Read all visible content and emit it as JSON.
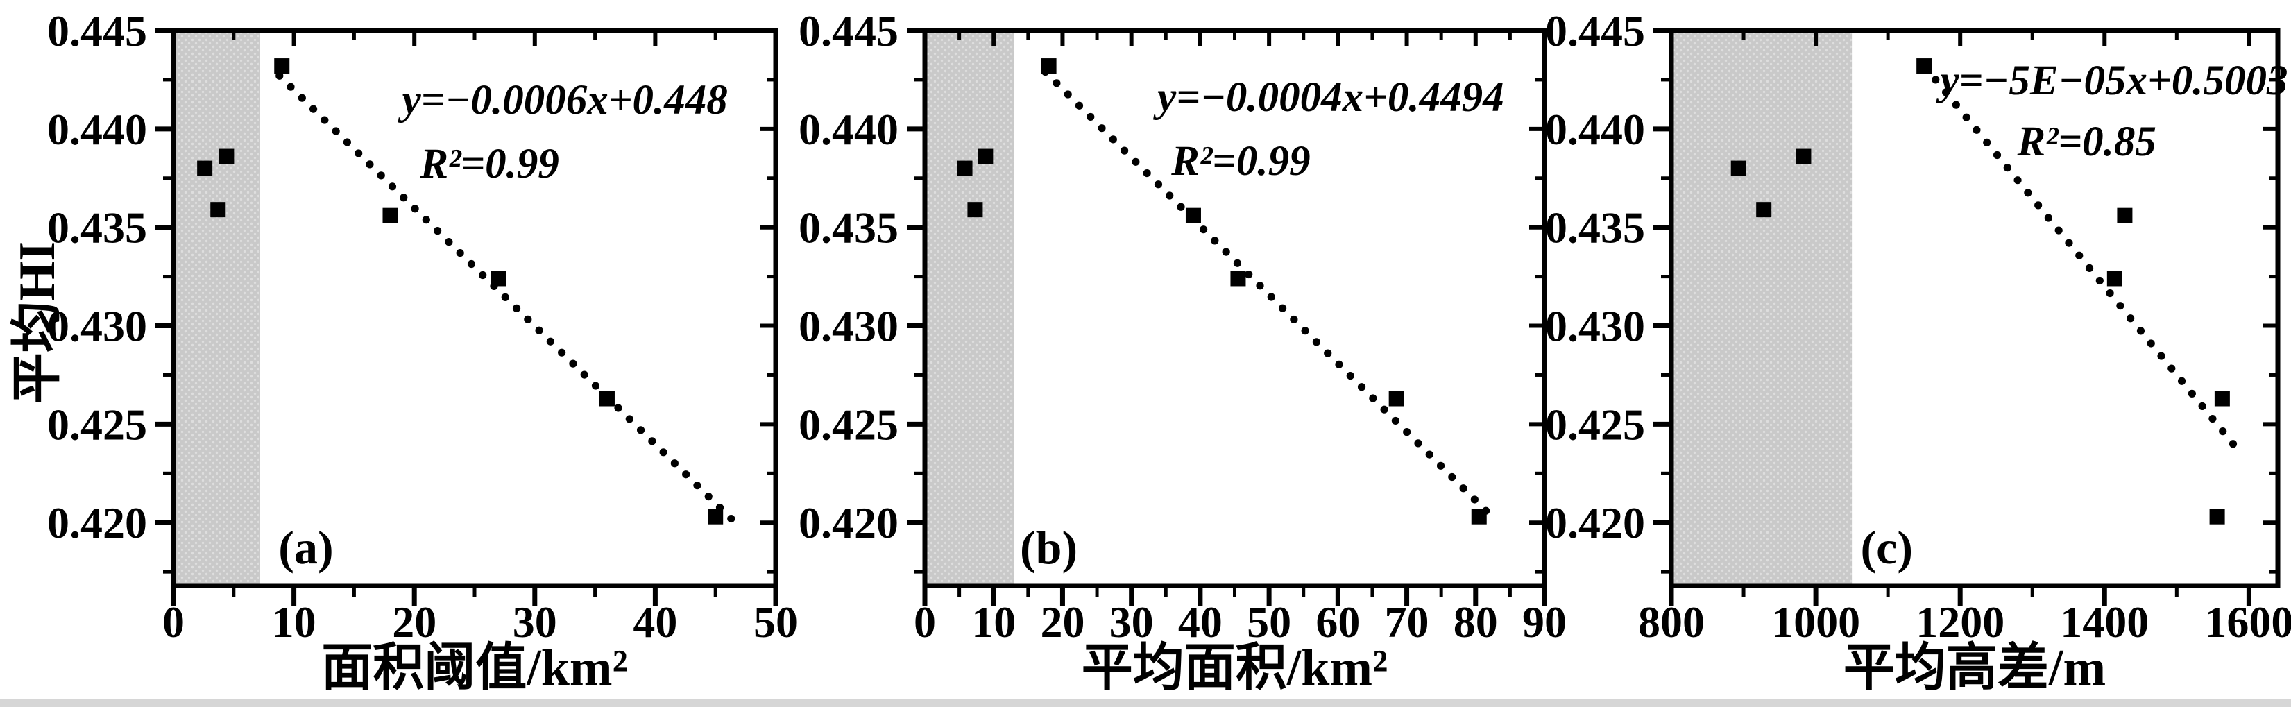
{
  "figure": {
    "background_color": "#ffffff",
    "ink_color": "#000000",
    "shade_color": "#c9c9c9",
    "shade_dot_color": "#dedede",
    "bottom_strip_color": "#d6d6d6",
    "y_axis_title": "平均HI"
  },
  "chart_data": [
    {
      "type": "scatter",
      "panel_label": "(a)",
      "xlabel": "面积阈值/km²",
      "ylabel": "平均HI",
      "equation": "y=−0.0006x+0.448",
      "r_squared": "R²=0.99",
      "xlim": [
        0,
        50
      ],
      "ylim": [
        0.4168,
        0.445
      ],
      "x_major_ticks": [
        0,
        10,
        20,
        30,
        40,
        50
      ],
      "x_tick_labels": [
        "0",
        "10",
        "20",
        "30",
        "40",
        "50"
      ],
      "x_minor_ticks": [
        5,
        15,
        25,
        35,
        45
      ],
      "y_major_ticks": [
        0.445,
        0.44,
        0.435,
        0.43,
        0.425,
        0.42
      ],
      "y_tick_labels": [
        "0.445",
        "0.440",
        "0.435",
        "0.430",
        "0.425",
        "0.420"
      ],
      "y_minor_ticks": [
        0.4425,
        0.4375,
        0.4325,
        0.4275,
        0.4225,
        0.4175
      ],
      "grid": false,
      "shaded_region": {
        "from": 0,
        "to": 7.2
      },
      "excluded_points": [
        [
          2.6,
          0.438
        ],
        [
          4.4,
          0.4386
        ],
        [
          3.7,
          0.4359
        ]
      ],
      "fitted_points": [
        [
          9,
          0.4432
        ],
        [
          18,
          0.4356
        ],
        [
          27,
          0.4324
        ],
        [
          36,
          0.4263
        ],
        [
          45,
          0.4203
        ]
      ],
      "trend_line": {
        "x1": 8.8,
        "y1": 0.4427,
        "x2": 46.3,
        "y2": 0.4202
      },
      "annotations": {
        "eq_pos": [
          0.65,
          0.125
        ],
        "r2_pos": [
          0.525,
          0.24
        ],
        "label_pos": [
          0.22,
          0.935
        ]
      }
    },
    {
      "type": "scatter",
      "panel_label": "(b)",
      "xlabel": "平均面积/km²",
      "ylabel": "",
      "equation": "y=−0.0004x+0.4494",
      "r_squared": "R²=0.99",
      "xlim": [
        0,
        90
      ],
      "ylim": [
        0.4168,
        0.445
      ],
      "x_major_ticks": [
        0,
        10,
        20,
        30,
        40,
        50,
        60,
        70,
        80,
        90
      ],
      "x_tick_labels": [
        "0",
        "10",
        "20",
        "30",
        "40",
        "50",
        "60",
        "70",
        "80",
        "90"
      ],
      "x_minor_ticks": [
        5,
        15,
        25,
        35,
        45,
        55,
        65,
        75,
        85
      ],
      "y_major_ticks": [
        0.445,
        0.44,
        0.435,
        0.43,
        0.425,
        0.42
      ],
      "y_tick_labels": [
        "0.445",
        "0.440",
        "0.435",
        "0.430",
        "0.425",
        "0.420"
      ],
      "y_minor_ticks": [
        0.4425,
        0.4375,
        0.4325,
        0.4275,
        0.4225,
        0.4175
      ],
      "grid": false,
      "shaded_region": {
        "from": 0,
        "to": 13
      },
      "excluded_points": [
        [
          5.8,
          0.438
        ],
        [
          8.8,
          0.4386
        ],
        [
          7.3,
          0.4359
        ]
      ],
      "fitted_points": [
        [
          18,
          0.4432
        ],
        [
          39,
          0.4356
        ],
        [
          45.5,
          0.4324
        ],
        [
          68.5,
          0.4263
        ],
        [
          80.5,
          0.4203
        ]
      ],
      "trend_line": {
        "x1": 17.5,
        "y1": 0.4429,
        "x2": 81.5,
        "y2": 0.4206
      },
      "annotations": {
        "eq_pos": [
          0.655,
          0.12
        ],
        "r2_pos": [
          0.51,
          0.235
        ],
        "label_pos": [
          0.2,
          0.935
        ]
      }
    },
    {
      "type": "scatter",
      "panel_label": "(c)",
      "xlabel": "平均高差/m",
      "ylabel": "",
      "equation": "y=−5E−05x+0.5003",
      "r_squared": "R²=0.85",
      "xlim": [
        800,
        1640
      ],
      "ylim": [
        0.4168,
        0.445
      ],
      "x_major_ticks": [
        800,
        1000,
        1200,
        1400,
        1600
      ],
      "x_tick_labels": [
        "800",
        "1000",
        "1200",
        "1400",
        "1600"
      ],
      "x_minor_ticks": [
        900,
        1100,
        1300,
        1500
      ],
      "y_major_ticks": [
        0.445,
        0.44,
        0.435,
        0.43,
        0.425,
        0.42
      ],
      "y_tick_labels": [
        "0.445",
        "0.440",
        "0.435",
        "0.430",
        "0.425",
        "0.420"
      ],
      "y_minor_ticks": [
        0.4425,
        0.4375,
        0.4325,
        0.4275,
        0.4225,
        0.4175
      ],
      "grid": false,
      "shaded_region": {
        "from": 800,
        "to": 1050
      },
      "excluded_points": [
        [
          893,
          0.438
        ],
        [
          983,
          0.4386
        ],
        [
          928,
          0.4359
        ]
      ],
      "fitted_points": [
        [
          1150,
          0.4432
        ],
        [
          1428,
          0.4356
        ],
        [
          1414,
          0.4324
        ],
        [
          1563,
          0.4263
        ],
        [
          1556,
          0.4203
        ]
      ],
      "trend_line": {
        "x1": 1166,
        "y1": 0.4425,
        "x2": 1578,
        "y2": 0.424
      },
      "annotations": {
        "eq_pos": [
          0.73,
          0.09
        ],
        "r2_pos": [
          0.685,
          0.2
        ],
        "label_pos": [
          0.355,
          0.935
        ]
      }
    }
  ]
}
